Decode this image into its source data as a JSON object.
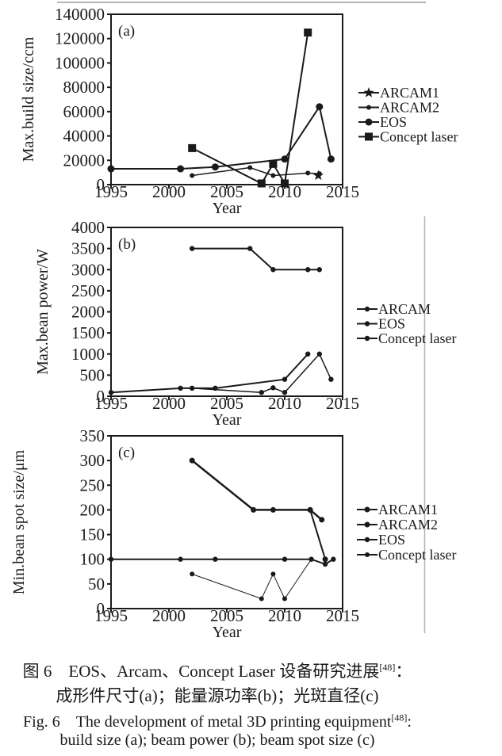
{
  "page": {
    "background": "#ffffff",
    "ink_color": "#1a1a1a",
    "rule_color": "#b3b3b3"
  },
  "figure": {
    "caption_zh": {
      "line1_prefix": "图 6　EOS、Arcam、Concept Laser 设备研究进展",
      "line1_sup": "[48]",
      "line1_suffix": "：",
      "line2": "成形件尺寸(a)；能量源功率(b)；光斑直径(c)"
    },
    "caption_en": {
      "line1_prefix": "Fig. 6　The development of metal 3D printing equipment",
      "line1_sup": "[48]",
      "line1_suffix": ":",
      "line2": "build size (a); beam power (b); beam spot size (c)"
    }
  },
  "chart_data": [
    {
      "id": "a",
      "type": "line",
      "panel_label": "(a)",
      "xlabel": "Year",
      "ylabel": "Max.build size/ccm",
      "xlim": [
        1995,
        2015
      ],
      "xticks": [
        1995,
        2000,
        2005,
        2010,
        2015
      ],
      "ylim": [
        0,
        140000
      ],
      "yticks": [
        0,
        20000,
        40000,
        60000,
        80000,
        100000,
        120000,
        140000
      ],
      "grid": false,
      "legend_position": "right",
      "legend": [
        "ARCAM1",
        "ARCAM2",
        "EOS",
        "Concept laser"
      ],
      "series": [
        {
          "name": "ARCAM1",
          "marker": "star",
          "marker_size": 7,
          "line_width": 1.5,
          "points": [
            [
              2012.9,
              7500
            ]
          ]
        },
        {
          "name": "ARCAM2",
          "marker": "dot",
          "marker_size": 3,
          "line_width": 1.5,
          "points": [
            [
              2002,
              7500
            ],
            [
              2007,
              14000
            ],
            [
              2009,
              7500
            ],
            [
              2012,
              9500
            ],
            [
              2013,
              9000
            ]
          ]
        },
        {
          "name": "EOS",
          "marker": "circle",
          "marker_size": 4.5,
          "line_width": 2,
          "points": [
            [
              1995,
              13000
            ],
            [
              2001,
              13000
            ],
            [
              2004,
              14500
            ],
            [
              2010,
              21000
            ],
            [
              2013,
              64000
            ],
            [
              2014,
              21000
            ]
          ]
        },
        {
          "name": "Concept laser",
          "marker": "square",
          "marker_size": 5,
          "line_width": 2,
          "points": [
            [
              2002,
              30000
            ],
            [
              2008,
              1000
            ],
            [
              2009,
              17000
            ],
            [
              2010,
              1000
            ],
            [
              2012,
              125000
            ]
          ]
        }
      ]
    },
    {
      "id": "b",
      "type": "line",
      "panel_label": "(b)",
      "xlabel": "Year",
      "ylabel": "Max.bean power/W",
      "xlim": [
        1995,
        2015
      ],
      "xticks": [
        1995,
        2000,
        2005,
        2010,
        2015
      ],
      "ylim": [
        0,
        4000
      ],
      "yticks": [
        0,
        500,
        1000,
        1500,
        2000,
        2500,
        3000,
        3500,
        4000
      ],
      "grid": false,
      "legend_position": "right",
      "legend": [
        "ARCAM",
        "EOS",
        "Concept laser"
      ],
      "series": [
        {
          "name": "ARCAM",
          "marker": "dot",
          "marker_size": 3.2,
          "line_width": 2,
          "points": [
            [
              2002,
              3500
            ],
            [
              2007,
              3500
            ],
            [
              2009,
              3000
            ],
            [
              2012,
              3000
            ],
            [
              2013,
              3000
            ]
          ]
        },
        {
          "name": "EOS",
          "marker": "dot",
          "marker_size": 3.2,
          "line_width": 2,
          "points": [
            [
              1995,
              90
            ],
            [
              2001,
              190
            ],
            [
              2004,
              190
            ],
            [
              2010,
              400
            ],
            [
              2012,
              1000
            ]
          ]
        },
        {
          "name": "Concept laser",
          "marker": "dot",
          "marker_size": 3.2,
          "line_width": 1.5,
          "points": [
            [
              2002,
              190
            ],
            [
              2008,
              90
            ],
            [
              2009,
              200
            ],
            [
              2010,
              90
            ],
            [
              2013,
              1000
            ],
            [
              2014,
              400
            ]
          ]
        }
      ]
    },
    {
      "id": "c",
      "type": "line",
      "panel_label": "(c)",
      "xlabel": "Year",
      "ylabel": "Min.bean spot size/μm",
      "xlim": [
        1995,
        2015
      ],
      "xticks": [
        1995,
        2000,
        2005,
        2010,
        2015
      ],
      "ylim": [
        0,
        350
      ],
      "yticks": [
        0,
        50,
        100,
        150,
        200,
        250,
        300,
        350
      ],
      "grid": false,
      "legend_position": "right",
      "legend": [
        "ARCAM1",
        "ARCAM2",
        "EOS",
        "Concept laser"
      ],
      "series": [
        {
          "name": "ARCAM1",
          "marker": "dot",
          "marker_size": 3.5,
          "line_width": 2.5,
          "points": [
            [
              2002,
              300
            ],
            [
              2007.3,
              200
            ],
            [
              2009,
              200
            ],
            [
              2012.2,
              200
            ],
            [
              2013.2,
              180
            ]
          ]
        },
        {
          "name": "ARCAM2",
          "marker": "dot",
          "marker_size": 3.5,
          "line_width": 2,
          "points": [
            [
              2012.2,
              200
            ],
            [
              2013.5,
              100
            ]
          ]
        },
        {
          "name": "EOS",
          "marker": "dot",
          "marker_size": 3.2,
          "line_width": 2,
          "points": [
            [
              1995,
              100
            ],
            [
              2001,
              100
            ],
            [
              2004,
              100
            ],
            [
              2010,
              100
            ],
            [
              2012.3,
              100
            ],
            [
              2013.5,
              90
            ],
            [
              2014.2,
              100
            ]
          ]
        },
        {
          "name": "Concept laser",
          "marker": "dot",
          "marker_size": 3,
          "line_width": 1,
          "points": [
            [
              2002,
              70
            ],
            [
              2008,
              20
            ],
            [
              2009,
              70
            ],
            [
              2010,
              20
            ],
            [
              2012.3,
              100
            ]
          ]
        }
      ]
    }
  ]
}
